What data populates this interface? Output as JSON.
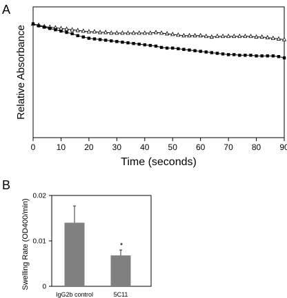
{
  "panels": {
    "a_label": "A",
    "b_label": "B"
  },
  "chart_data": [
    {
      "type": "line",
      "panel": "A",
      "xlabel": "Time (seconds)",
      "ylabel": "Relative Absorbance",
      "xlim": [
        0,
        90
      ],
      "ylim": [
        0,
        1
      ],
      "x_ticks": [
        "0",
        "10",
        "20",
        "30",
        "40",
        "50",
        "60",
        "70",
        "80",
        "90"
      ],
      "y_ticks_shown": false,
      "grid": false,
      "legend": "none",
      "series": [
        {
          "marker": "open-triangle",
          "x": [
            0,
            2,
            4,
            6,
            8,
            10,
            12,
            14,
            16,
            18,
            20,
            22,
            24,
            26,
            28,
            30,
            32,
            34,
            36,
            38,
            40,
            42,
            44,
            46,
            48,
            50,
            52,
            54,
            56,
            58,
            60,
            62,
            64,
            66,
            68,
            70,
            72,
            74,
            76,
            78,
            80,
            82,
            84,
            86,
            88,
            90
          ],
          "y": [
            0.87,
            0.86,
            0.85,
            0.845,
            0.84,
            0.835,
            0.83,
            0.825,
            0.82,
            0.815,
            0.81,
            0.81,
            0.805,
            0.805,
            0.8,
            0.8,
            0.8,
            0.8,
            0.8,
            0.8,
            0.8,
            0.8,
            0.805,
            0.8,
            0.795,
            0.79,
            0.785,
            0.78,
            0.78,
            0.78,
            0.78,
            0.775,
            0.77,
            0.775,
            0.775,
            0.775,
            0.775,
            0.775,
            0.775,
            0.775,
            0.77,
            0.77,
            0.765,
            0.76,
            0.755,
            0.75
          ]
        },
        {
          "marker": "filled-square",
          "x": [
            0,
            2,
            4,
            6,
            8,
            10,
            12,
            14,
            16,
            18,
            20,
            22,
            24,
            26,
            28,
            30,
            32,
            34,
            36,
            38,
            40,
            42,
            44,
            46,
            48,
            50,
            52,
            54,
            56,
            58,
            60,
            62,
            64,
            66,
            68,
            70,
            72,
            74,
            76,
            78,
            80,
            82,
            84,
            86,
            88,
            90
          ],
          "y": [
            0.87,
            0.855,
            0.845,
            0.835,
            0.825,
            0.815,
            0.805,
            0.795,
            0.78,
            0.77,
            0.76,
            0.755,
            0.75,
            0.745,
            0.74,
            0.735,
            0.73,
            0.725,
            0.72,
            0.715,
            0.71,
            0.705,
            0.7,
            0.69,
            0.685,
            0.685,
            0.68,
            0.675,
            0.67,
            0.665,
            0.66,
            0.655,
            0.65,
            0.645,
            0.64,
            0.635,
            0.635,
            0.63,
            0.63,
            0.63,
            0.625,
            0.625,
            0.625,
            0.625,
            0.62,
            0.61
          ]
        }
      ]
    },
    {
      "type": "bar",
      "panel": "B",
      "ylabel": "Swelling Rate (OD400/min)",
      "ylim": [
        0,
        0.02
      ],
      "y_ticks": [
        "0",
        "0.01",
        "0.02"
      ],
      "categories": [
        "IgG2b control",
        "5C11"
      ],
      "values": [
        0.014,
        0.0068
      ],
      "errors": [
        0.0037,
        0.0012
      ],
      "annotations": [
        "",
        "*"
      ],
      "bar_color": "#808080"
    }
  ]
}
